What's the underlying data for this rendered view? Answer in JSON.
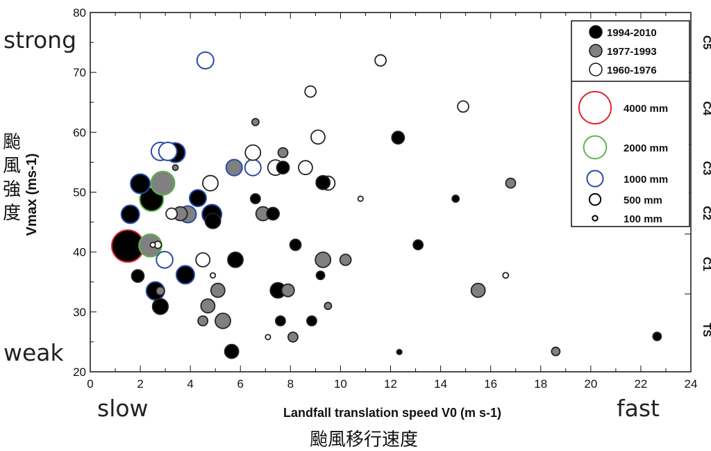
{
  "chart_data": {
    "type": "scatter",
    "title": "",
    "xlabel": "Landfall translation speed V0 (m s-1)",
    "ylabel": "Vmax (ms-1)",
    "xlim": [
      0,
      24
    ],
    "ylim": [
      20,
      80
    ],
    "x_ticks": [
      "0",
      "2",
      "4",
      "6",
      "8",
      "10",
      "12",
      "14",
      "16",
      "18",
      "20",
      "22",
      "24"
    ],
    "y_ticks": [
      "20",
      "30",
      "40",
      "50",
      "60",
      "70",
      "80"
    ],
    "right_axis": {
      "labels": [
        "TS",
        "C1",
        "C2",
        "C3",
        "C4",
        "C5"
      ],
      "thresholds": [
        33,
        43,
        50,
        58,
        70
      ]
    },
    "annotations": {
      "strong": "strong",
      "weak": "weak",
      "slow": "slow",
      "fast": "fast",
      "y_cn": "颱風強度",
      "x_cn": "颱風移行速度"
    },
    "legend": {
      "placement": "top-right",
      "periods": [
        {
          "key": "B",
          "label": "1994-2010",
          "color": "#000000"
        },
        {
          "key": "G",
          "label": "1977-1993",
          "color": "#808080"
        },
        {
          "key": "O",
          "label": "1960-1976",
          "color": "#ffffff"
        }
      ],
      "sizes": [
        {
          "mm": 4000,
          "label": "4000 mm",
          "color": "#e0282e"
        },
        {
          "mm": 2000,
          "label": "2000 mm",
          "color": "#5ab847"
        },
        {
          "mm": 1000,
          "label": "1000 mm",
          "color": "#2a4aa8"
        },
        {
          "mm": 500,
          "label": "500 mm",
          "color": "#000000"
        },
        {
          "mm": 100,
          "label": "100 mm",
          "color": "#000000"
        }
      ]
    },
    "points": [
      {
        "x": 1.5,
        "y": 41,
        "mm": 4000,
        "p": "B"
      },
      {
        "x": 2.4,
        "y": 41.1,
        "mm": 2000,
        "p": "G"
      },
      {
        "x": 2.5,
        "y": 41.2,
        "mm": 100,
        "p": "O"
      },
      {
        "x": 2.7,
        "y": 41.2,
        "mm": 200,
        "p": "O"
      },
      {
        "x": 2.97,
        "y": 38.7,
        "mm": 1050,
        "p": "O"
      },
      {
        "x": 1.9,
        "y": 36,
        "mm": 600,
        "p": "B"
      },
      {
        "x": 2.6,
        "y": 33.5,
        "mm": 1270,
        "p": "B"
      },
      {
        "x": 2.8,
        "y": 33.5,
        "mm": 270,
        "p": "G"
      },
      {
        "x": 2.8,
        "y": 30.9,
        "mm": 950,
        "p": "B"
      },
      {
        "x": 1.6,
        "y": 46.3,
        "mm": 1270,
        "p": "B"
      },
      {
        "x": 2.0,
        "y": 51.4,
        "mm": 1470,
        "p": "B"
      },
      {
        "x": 2.45,
        "y": 48.8,
        "mm": 2170,
        "p": "B"
      },
      {
        "x": 2.9,
        "y": 51.5,
        "mm": 2170,
        "p": "G"
      },
      {
        "x": 2.8,
        "y": 56.8,
        "mm": 1270,
        "p": "O"
      },
      {
        "x": 3.1,
        "y": 56.8,
        "mm": 1270,
        "p": "O"
      },
      {
        "x": 3.4,
        "y": 56.6,
        "mm": 1470,
        "p": "B"
      },
      {
        "x": 3.4,
        "y": 54.1,
        "mm": 120,
        "p": "G"
      },
      {
        "x": 3.25,
        "y": 46.4,
        "mm": 480,
        "p": "O"
      },
      {
        "x": 3.6,
        "y": 46.4,
        "mm": 750,
        "p": "G"
      },
      {
        "x": 3.9,
        "y": 46.3,
        "mm": 1080,
        "p": "G"
      },
      {
        "x": 4.3,
        "y": 49.0,
        "mm": 1080,
        "p": "B"
      },
      {
        "x": 4.86,
        "y": 46.3,
        "mm": 1470,
        "p": "B"
      },
      {
        "x": 4.9,
        "y": 45.2,
        "mm": 910,
        "p": "B"
      },
      {
        "x": 4.5,
        "y": 38.7,
        "mm": 750,
        "p": "O"
      },
      {
        "x": 3.8,
        "y": 36.2,
        "mm": 1270,
        "p": "B"
      },
      {
        "x": 4.9,
        "y": 36.1,
        "mm": 100,
        "p": "O"
      },
      {
        "x": 5.1,
        "y": 33.6,
        "mm": 750,
        "p": "G"
      },
      {
        "x": 4.7,
        "y": 31,
        "mm": 750,
        "p": "G"
      },
      {
        "x": 4.5,
        "y": 28.5,
        "mm": 370,
        "p": "G"
      },
      {
        "x": 5.3,
        "y": 28.5,
        "mm": 910,
        "p": "G"
      },
      {
        "x": 4.6,
        "y": 72,
        "mm": 1080,
        "p": "O"
      },
      {
        "x": 6.6,
        "y": 61.7,
        "mm": 190,
        "p": "G"
      },
      {
        "x": 9.1,
        "y": 59.2,
        "mm": 750,
        "p": "O"
      },
      {
        "x": 12.3,
        "y": 59.1,
        "mm": 610,
        "p": "B"
      },
      {
        "x": 6.5,
        "y": 56.6,
        "mm": 910,
        "p": "O"
      },
      {
        "x": 7.7,
        "y": 56.6,
        "mm": 370,
        "p": "G"
      },
      {
        "x": 5.75,
        "y": 54.1,
        "mm": 1000,
        "p": "G"
      },
      {
        "x": 6.5,
        "y": 54.1,
        "mm": 1000,
        "p": "O"
      },
      {
        "x": 7.4,
        "y": 54.1,
        "mm": 910,
        "p": "O"
      },
      {
        "x": 7.7,
        "y": 54.1,
        "mm": 610,
        "p": "B"
      },
      {
        "x": 8.6,
        "y": 54.1,
        "mm": 750,
        "p": "O"
      },
      {
        "x": 4.8,
        "y": 51.5,
        "mm": 910,
        "p": "O"
      },
      {
        "x": 9.5,
        "y": 51.5,
        "mm": 750,
        "p": "O"
      },
      {
        "x": 9.3,
        "y": 51.6,
        "mm": 750,
        "p": "B"
      },
      {
        "x": 6.6,
        "y": 48.9,
        "mm": 370,
        "p": "B"
      },
      {
        "x": 10.8,
        "y": 48.9,
        "mm": 100,
        "p": "O"
      },
      {
        "x": 6.9,
        "y": 46.4,
        "mm": 750,
        "p": "G"
      },
      {
        "x": 7.3,
        "y": 46.4,
        "mm": 610,
        "p": "B"
      },
      {
        "x": 8.2,
        "y": 41.2,
        "mm": 480,
        "p": "B"
      },
      {
        "x": 5.8,
        "y": 38.7,
        "mm": 910,
        "p": "B"
      },
      {
        "x": 9.3,
        "y": 38.7,
        "mm": 910,
        "p": "G"
      },
      {
        "x": 10.2,
        "y": 38.7,
        "mm": 480,
        "p": "G"
      },
      {
        "x": 9.2,
        "y": 36.1,
        "mm": 270,
        "p": "B"
      },
      {
        "x": 7.5,
        "y": 33.6,
        "mm": 910,
        "p": "B"
      },
      {
        "x": 7.9,
        "y": 33.6,
        "mm": 610,
        "p": "G"
      },
      {
        "x": 9.5,
        "y": 31.0,
        "mm": 190,
        "p": "G"
      },
      {
        "x": 7.6,
        "y": 28.5,
        "mm": 370,
        "p": "B"
      },
      {
        "x": 8.85,
        "y": 28.5,
        "mm": 370,
        "p": "B"
      },
      {
        "x": 7.1,
        "y": 25.8,
        "mm": 100,
        "p": "O"
      },
      {
        "x": 8.1,
        "y": 25.8,
        "mm": 370,
        "p": "G"
      },
      {
        "x": 5.65,
        "y": 23.4,
        "mm": 750,
        "p": "B"
      },
      {
        "x": 12.35,
        "y": 23.3,
        "mm": 100,
        "p": "B"
      },
      {
        "x": 8.8,
        "y": 66.8,
        "mm": 480,
        "p": "O"
      },
      {
        "x": 11.6,
        "y": 72,
        "mm": 480,
        "p": "O"
      },
      {
        "x": 14.9,
        "y": 64.3,
        "mm": 480,
        "p": "O"
      },
      {
        "x": 13.1,
        "y": 41.2,
        "mm": 370,
        "p": "B"
      },
      {
        "x": 14.6,
        "y": 48.9,
        "mm": 190,
        "p": "B"
      },
      {
        "x": 16.8,
        "y": 51.5,
        "mm": 370,
        "p": "G"
      },
      {
        "x": 16.6,
        "y": 36.1,
        "mm": 120,
        "p": "O"
      },
      {
        "x": 15.5,
        "y": 33.6,
        "mm": 750,
        "p": "G"
      },
      {
        "x": 18.6,
        "y": 23.4,
        "mm": 270,
        "p": "G"
      },
      {
        "x": 22.65,
        "y": 25.9,
        "mm": 270,
        "p": "B"
      }
    ]
  }
}
